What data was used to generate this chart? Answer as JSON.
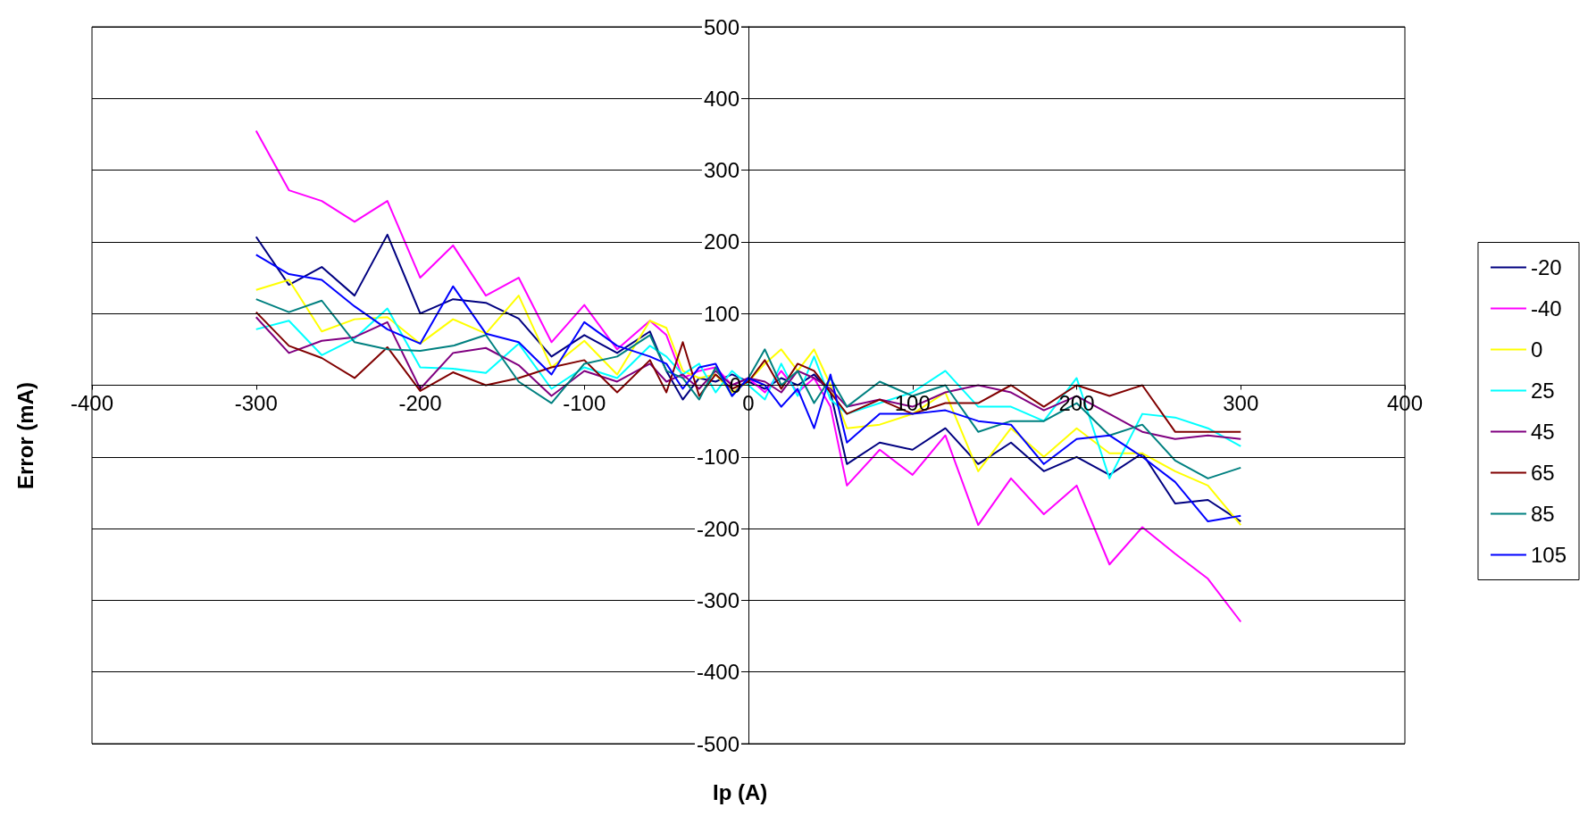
{
  "chart_data": {
    "type": "line",
    "xlabel": "Ip (A)",
    "ylabel": "Error (mA)",
    "x": [
      -300,
      -280,
      -260,
      -240,
      -220,
      -200,
      -180,
      -160,
      -140,
      -120,
      -100,
      -80,
      -60,
      -50,
      -40,
      -30,
      -20,
      -10,
      0,
      10,
      20,
      30,
      40,
      50,
      60,
      80,
      100,
      120,
      140,
      160,
      180,
      200,
      220,
      240,
      260,
      280,
      300
    ],
    "series": [
      {
        "name": "-20",
        "color": "#000080",
        "values": [
          207,
          140,
          165,
          125,
          210,
          100,
          120,
          115,
          93,
          40,
          70,
          45,
          75,
          20,
          -20,
          10,
          5,
          15,
          5,
          -5,
          10,
          0,
          15,
          -10,
          -110,
          -80,
          -90,
          -60,
          -110,
          -80,
          -120,
          -100,
          -125,
          -95,
          -165,
          -160,
          -190
        ]
      },
      {
        "name": "-40",
        "color": "#ff00ff",
        "values": [
          355,
          272,
          257,
          228,
          257,
          150,
          195,
          125,
          150,
          60,
          112,
          50,
          90,
          70,
          10,
          20,
          25,
          0,
          10,
          -10,
          20,
          -10,
          10,
          -30,
          -140,
          -90,
          -125,
          -70,
          -195,
          -130,
          -180,
          -140,
          -250,
          -198,
          -235,
          -270,
          -330
        ]
      },
      {
        "name": "0",
        "color": "#ffff00",
        "values": [
          133,
          147,
          75,
          92,
          95,
          58,
          92,
          72,
          125,
          25,
          62,
          15,
          90,
          80,
          20,
          10,
          15,
          -10,
          5,
          30,
          50,
          20,
          50,
          0,
          -60,
          -55,
          -40,
          -10,
          -120,
          -60,
          -100,
          -60,
          -95,
          -95,
          -120,
          -140,
          -195
        ]
      },
      {
        "name": "25",
        "color": "#00ffff",
        "values": [
          78,
          90,
          42,
          65,
          107,
          25,
          23,
          17,
          58,
          -5,
          25,
          10,
          55,
          40,
          15,
          30,
          -10,
          20,
          0,
          -20,
          30,
          -15,
          40,
          -20,
          -40,
          -25,
          -10,
          20,
          -30,
          -30,
          -50,
          10,
          -130,
          -40,
          -45,
          -60,
          -85
        ]
      },
      {
        "name": "45",
        "color": "#800080",
        "values": [
          95,
          45,
          62,
          67,
          88,
          -5,
          45,
          52,
          28,
          -15,
          20,
          5,
          30,
          5,
          15,
          -5,
          20,
          0,
          10,
          5,
          -10,
          20,
          10,
          -5,
          -30,
          -20,
          -30,
          -10,
          0,
          -10,
          -35,
          -15,
          -40,
          -65,
          -75,
          -70,
          -75
        ]
      },
      {
        "name": "65",
        "color": "#800000",
        "values": [
          102,
          55,
          38,
          10,
          53,
          -8,
          18,
          0,
          10,
          25,
          35,
          -10,
          35,
          -10,
          60,
          -15,
          15,
          -5,
          5,
          35,
          -5,
          30,
          20,
          -10,
          -40,
          -20,
          -40,
          -25,
          -25,
          0,
          -30,
          0,
          -15,
          0,
          -65,
          -65,
          -65
        ]
      },
      {
        "name": "85",
        "color": "#008080",
        "values": [
          120,
          102,
          118,
          60,
          50,
          48,
          55,
          70,
          5,
          -25,
          30,
          40,
          70,
          20,
          10,
          -20,
          25,
          -15,
          10,
          50,
          0,
          20,
          -25,
          10,
          -30,
          5,
          -15,
          0,
          -65,
          -50,
          -50,
          -25,
          -70,
          -55,
          -105,
          -130,
          -115
        ]
      },
      {
        "name": "105",
        "color": "#0000ff",
        "values": [
          182,
          155,
          147,
          110,
          78,
          58,
          138,
          72,
          60,
          15,
          88,
          55,
          40,
          30,
          -5,
          25,
          30,
          -15,
          10,
          0,
          -30,
          -5,
          -60,
          15,
          -80,
          -40,
          -40,
          -35,
          -50,
          -55,
          -110,
          -75,
          -70,
          -100,
          -135,
          -190,
          -182
        ]
      }
    ],
    "xlim": [
      -400,
      400
    ],
    "xticks": [
      -400,
      -300,
      -200,
      -100,
      0,
      100,
      200,
      300,
      400
    ],
    "ylim": [
      -500,
      500
    ],
    "yticks": [
      -500,
      -400,
      -300,
      -200,
      -100,
      0,
      100,
      200,
      300,
      400,
      500
    ],
    "grid": "y",
    "legend": "right",
    "marker": "none",
    "line_style": "solid"
  }
}
